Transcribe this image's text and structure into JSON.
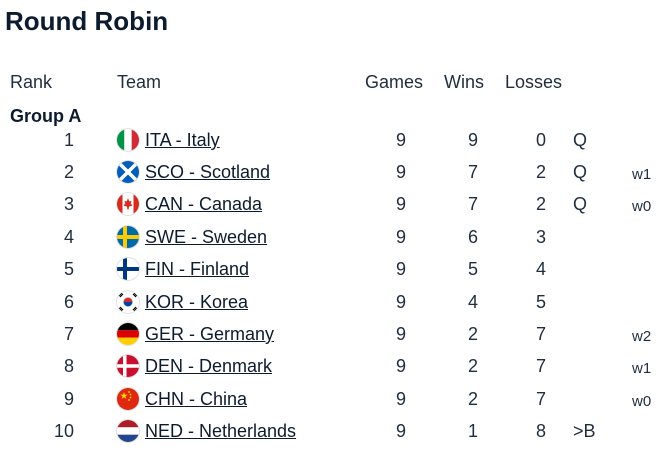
{
  "title": "Round Robin",
  "headers": {
    "rank": "Rank",
    "team": "Team",
    "games": "Games",
    "wins": "Wins",
    "losses": "Losses"
  },
  "group_label": "Group A",
  "rows": [
    {
      "rank": "1",
      "team": "ITA - Italy",
      "flag": "italy-flag-icon",
      "games": "9",
      "wins": "9",
      "losses": "0",
      "qual": "Q",
      "note": ""
    },
    {
      "rank": "2",
      "team": "SCO - Scotland",
      "flag": "scotland-flag-icon",
      "games": "9",
      "wins": "7",
      "losses": "2",
      "qual": "Q",
      "note": "w1"
    },
    {
      "rank": "3",
      "team": "CAN - Canada",
      "flag": "canada-flag-icon",
      "games": "9",
      "wins": "7",
      "losses": "2",
      "qual": "Q",
      "note": "w0"
    },
    {
      "rank": "4",
      "team": "SWE - Sweden",
      "flag": "sweden-flag-icon",
      "games": "9",
      "wins": "6",
      "losses": "3",
      "qual": "",
      "note": ""
    },
    {
      "rank": "5",
      "team": "FIN - Finland",
      "flag": "finland-flag-icon",
      "games": "9",
      "wins": "5",
      "losses": "4",
      "qual": "",
      "note": ""
    },
    {
      "rank": "6",
      "team": "KOR - Korea",
      "flag": "korea-flag-icon",
      "games": "9",
      "wins": "4",
      "losses": "5",
      "qual": "",
      "note": ""
    },
    {
      "rank": "7",
      "team": "GER - Germany",
      "flag": "germany-flag-icon",
      "games": "9",
      "wins": "2",
      "losses": "7",
      "qual": "",
      "note": "w2"
    },
    {
      "rank": "8",
      "team": "DEN - Denmark",
      "flag": "denmark-flag-icon",
      "games": "9",
      "wins": "2",
      "losses": "7",
      "qual": "",
      "note": "w1"
    },
    {
      "rank": "9",
      "team": "CHN - China",
      "flag": "china-flag-icon",
      "games": "9",
      "wins": "2",
      "losses": "7",
      "qual": "",
      "note": "w0"
    },
    {
      "rank": "10",
      "team": "NED - Netherlands",
      "flag": "netherlands-flag-icon",
      "games": "9",
      "wins": "1",
      "losses": "8",
      "qual": ">B",
      "note": ""
    }
  ]
}
